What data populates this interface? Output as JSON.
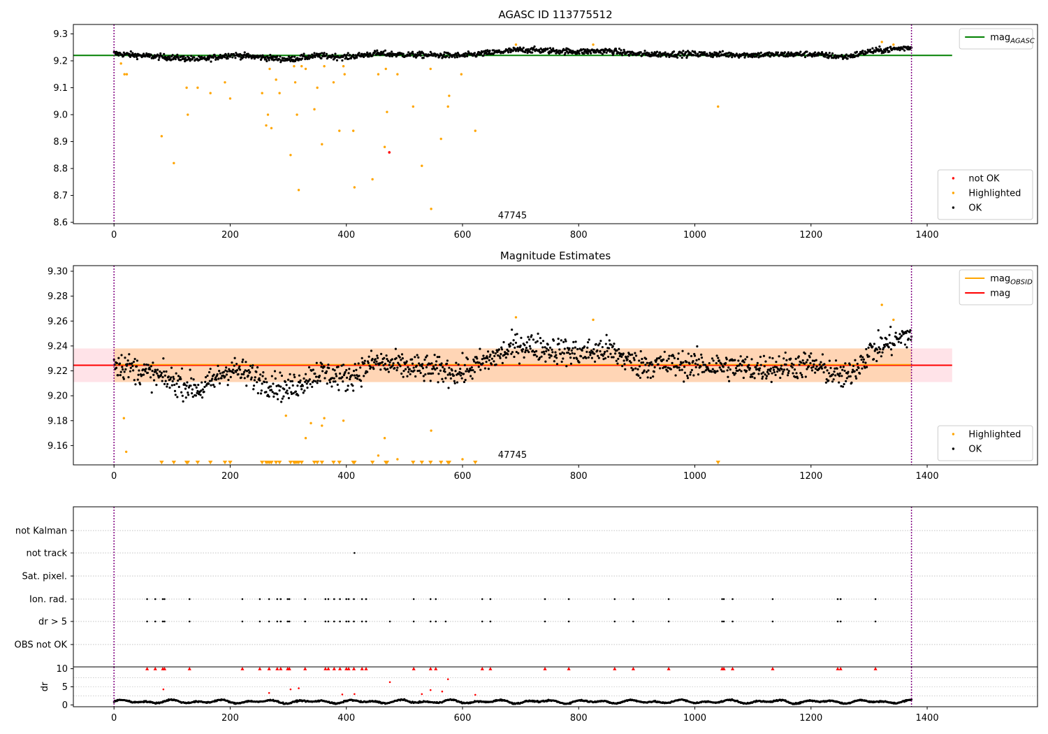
{
  "chart_data": [
    {
      "type": "scatter",
      "title": "AGASC ID 113775512",
      "xlim": [
        -70,
        1590
      ],
      "ylim": [
        8.595,
        9.335
      ],
      "x_ticks": [
        0,
        200,
        400,
        600,
        800,
        1000,
        1200,
        1400
      ],
      "y_ticks": [
        8.6,
        8.7,
        8.8,
        8.9,
        9.0,
        9.1,
        9.2,
        9.3
      ],
      "y_tick_labels": [
        "8.6",
        "8.7",
        "8.8",
        "8.9",
        "9.0",
        "9.1",
        "9.2",
        "9.3"
      ],
      "vlines": [
        0,
        1373
      ],
      "hline": {
        "name": "mag_AGASC",
        "y": 9.22,
        "x_range": [
          -70,
          1443
        ],
        "color": "#008000"
      },
      "annotation": {
        "text": "47745",
        "x": 686,
        "y": 8.615
      },
      "legends": [
        {
          "position": "top-right",
          "entries": [
            {
              "label": "mag",
              "subscript": "AGASC",
              "marker": "line",
              "color": "#008000"
            }
          ]
        },
        {
          "position": "bottom-right",
          "entries": [
            {
              "label": "not OK",
              "marker": "dot",
              "color": "#ff0000"
            },
            {
              "label": "Highlighted",
              "marker": "dot",
              "color": "#ffa500"
            },
            {
              "label": "OK",
              "marker": "dot",
              "color": "#000000"
            }
          ]
        }
      ],
      "ok_series": {
        "color": "#000000",
        "x_range": [
          0,
          1373
        ],
        "y_segments": [
          [
            0,
            9.227
          ],
          [
            50,
            9.219
          ],
          [
            150,
            9.205
          ],
          [
            200,
            9.222
          ],
          [
            300,
            9.205
          ],
          [
            350,
            9.219
          ],
          [
            400,
            9.214
          ],
          [
            450,
            9.227
          ],
          [
            500,
            9.223
          ],
          [
            600,
            9.219
          ],
          [
            700,
            9.241
          ],
          [
            800,
            9.234
          ],
          [
            850,
            9.237
          ],
          [
            900,
            9.225
          ],
          [
            1000,
            9.225
          ],
          [
            1100,
            9.222
          ],
          [
            1200,
            9.225
          ],
          [
            1260,
            9.214
          ],
          [
            1300,
            9.235
          ],
          [
            1373,
            9.25
          ]
        ],
        "y_spread": 0.01
      },
      "highlighted": {
        "color": "#ffa500",
        "x": [
          12,
          18,
          22,
          82,
          103,
          125,
          127,
          144,
          166,
          191,
          200,
          255,
          262,
          265,
          268,
          271,
          279,
          285,
          304,
          310,
          312,
          315,
          318,
          323,
          330,
          345,
          350,
          358,
          362,
          378,
          388,
          395,
          397,
          412,
          414,
          445,
          455,
          466,
          468,
          470,
          488,
          515,
          530,
          545,
          546,
          563,
          575,
          577,
          598,
          622,
          692,
          825,
          1040,
          1322,
          1342
        ],
        "y": [
          9.19,
          9.15,
          9.15,
          8.92,
          8.82,
          9.1,
          9.0,
          9.1,
          9.08,
          9.12,
          9.06,
          9.08,
          8.96,
          9.0,
          9.17,
          8.95,
          9.13,
          9.08,
          8.85,
          9.18,
          9.12,
          9.0,
          8.72,
          9.18,
          9.17,
          9.02,
          9.1,
          8.89,
          9.18,
          9.12,
          8.94,
          9.18,
          9.15,
          8.94,
          8.73,
          8.76,
          9.15,
          8.88,
          9.17,
          9.01,
          9.15,
          9.03,
          8.81,
          9.17,
          8.65,
          8.91,
          9.03,
          9.07,
          9.15,
          8.94,
          9.26,
          9.26,
          9.03,
          9.27,
          9.26
        ]
      },
      "not_ok": {
        "color": "#ff0000",
        "x": [
          474
        ],
        "y": [
          8.86
        ]
      }
    },
    {
      "type": "scatter",
      "title": "Magnitude Estimates",
      "xlim": [
        -70,
        1590
      ],
      "ylim": [
        9.1445,
        9.3045
      ],
      "x_ticks": [
        0,
        200,
        400,
        600,
        800,
        1000,
        1200,
        1400
      ],
      "y_ticks": [
        9.16,
        9.18,
        9.2,
        9.22,
        9.24,
        9.26,
        9.28,
        9.3
      ],
      "y_tick_labels": [
        "9.16",
        "9.18",
        "9.20",
        "9.22",
        "9.24",
        "9.26",
        "9.28",
        "9.30"
      ],
      "vlines": [
        0,
        1373
      ],
      "band_mag": {
        "y0": 9.211,
        "y1": 9.238,
        "x_range": [
          -70,
          1443
        ],
        "color": "#ffc0cb"
      },
      "band_obsid": {
        "y0": 9.211,
        "y1": 9.238,
        "x_range": [
          0,
          1373
        ],
        "color": "#ffa500"
      },
      "line_mag": {
        "name": "mag",
        "y": 9.2245,
        "color": "#ff0000"
      },
      "line_obsid": {
        "name": "mag_OBSID",
        "y": 9.2245,
        "color": "#ffa500"
      },
      "annotation": {
        "text": "47745",
        "x": 686,
        "y": 9.15
      },
      "legends": [
        {
          "position": "top-right",
          "entries": [
            {
              "label": "mag",
              "subscript": "OBSID",
              "marker": "line",
              "color": "#ffa500"
            },
            {
              "label": "mag",
              "marker": "line",
              "color": "#ff0000"
            }
          ]
        },
        {
          "position": "bottom-right",
          "entries": [
            {
              "label": "Highlighted",
              "marker": "dot",
              "color": "#ffa500"
            },
            {
              "label": "OK",
              "marker": "dot",
              "color": "#000000"
            }
          ]
        }
      ],
      "ok_series": {
        "color": "#000000",
        "x_range": [
          0,
          1373
        ],
        "y_segments": [
          [
            0,
            9.227
          ],
          [
            50,
            9.219
          ],
          [
            150,
            9.205
          ],
          [
            200,
            9.222
          ],
          [
            300,
            9.205
          ],
          [
            350,
            9.219
          ],
          [
            400,
            9.214
          ],
          [
            450,
            9.227
          ],
          [
            500,
            9.223
          ],
          [
            600,
            9.219
          ],
          [
            700,
            9.241
          ],
          [
            800,
            9.234
          ],
          [
            850,
            9.237
          ],
          [
            900,
            9.225
          ],
          [
            1000,
            9.225
          ],
          [
            1100,
            9.222
          ],
          [
            1200,
            9.225
          ],
          [
            1260,
            9.214
          ],
          [
            1300,
            9.235
          ],
          [
            1373,
            9.25
          ]
        ],
        "y_spread": 0.01
      },
      "highlighted": {
        "color": "#ffa500",
        "x": [
          17,
          21,
          296,
          330,
          339,
          358,
          362,
          395,
          455,
          466,
          488,
          546,
          600,
          692,
          825,
          1322,
          1342
        ],
        "y": [
          9.182,
          9.155,
          9.184,
          9.166,
          9.178,
          9.176,
          9.182,
          9.18,
          9.152,
          9.166,
          9.149,
          9.172,
          9.149,
          9.263,
          9.261,
          9.273,
          9.261
        ]
      },
      "clipped_markers": {
        "color": "#ffa500",
        "marker": "triangle-down",
        "y": 9.1465,
        "x": [
          82,
          103,
          125,
          127,
          144,
          166,
          191,
          200,
          255,
          262,
          265,
          268,
          271,
          279,
          285,
          304,
          310,
          312,
          315,
          318,
          323,
          345,
          350,
          358,
          378,
          388,
          412,
          414,
          445,
          468,
          470,
          515,
          530,
          545,
          563,
          575,
          577,
          622,
          1040
        ]
      }
    },
    {
      "type": "scatter",
      "title": "",
      "xlim": [
        -70,
        1590
      ],
      "categories": [
        "not Kalman",
        "not track",
        "Sat. pixel.",
        "Ion. rad.",
        "dr > 5",
        "OBS not OK"
      ],
      "flags": {
        "not track": [
          414
        ],
        "Ion. rad.": [
          57,
          71,
          84,
          87,
          130,
          221,
          251,
          267,
          281,
          287,
          299,
          302,
          329,
          364,
          369,
          379,
          389,
          400,
          404,
          413,
          427,
          434,
          516,
          545,
          554,
          634,
          648,
          742,
          783,
          862,
          894,
          955,
          1047,
          1050,
          1065,
          1134,
          1246,
          1251,
          1311
        ],
        "dr > 5": [
          57,
          71,
          84,
          87,
          130,
          221,
          251,
          267,
          281,
          287,
          299,
          302,
          329,
          364,
          369,
          379,
          389,
          400,
          404,
          413,
          427,
          434,
          475,
          516,
          545,
          554,
          571,
          634,
          648,
          742,
          783,
          862,
          894,
          955,
          1047,
          1050,
          1065,
          1134,
          1246,
          1251,
          1311
        ]
      },
      "vlines": [
        0,
        1373
      ]
    },
    {
      "type": "scatter",
      "title": "",
      "xlim": [
        -70,
        1590
      ],
      "ylim": [
        -0.5,
        10.5
      ],
      "ylabel": "dr",
      "x_ticks": [
        0,
        200,
        400,
        600,
        800,
        1000,
        1200,
        1400
      ],
      "y_ticks": [
        0,
        5,
        10
      ],
      "y_tick_labels": [
        "0",
        "5",
        "10"
      ],
      "vlines": [
        0,
        1373
      ],
      "dr_series": {
        "color": "#000000",
        "x_range": [
          0,
          1373
        ],
        "base": 0.9,
        "amplitude": 0.55
      },
      "red_points": {
        "color": "#ff0000",
        "x": [
          85,
          267,
          304,
          318,
          393,
          414,
          475,
          530,
          545,
          565,
          575,
          622
        ],
        "y": [
          4.3,
          3.3,
          4.3,
          4.6,
          2.9,
          3.0,
          6.3,
          3.0,
          4.1,
          3.7,
          7.1,
          2.8
        ]
      },
      "red_capped": {
        "color": "#ff0000",
        "marker": "triangle-up",
        "y": 10,
        "x": [
          57,
          71,
          84,
          87,
          130,
          221,
          251,
          267,
          281,
          287,
          299,
          302,
          329,
          364,
          369,
          379,
          389,
          400,
          404,
          413,
          427,
          434,
          516,
          545,
          554,
          634,
          648,
          742,
          783,
          862,
          894,
          955,
          1047,
          1050,
          1065,
          1134,
          1246,
          1251,
          1311
        ]
      }
    }
  ]
}
